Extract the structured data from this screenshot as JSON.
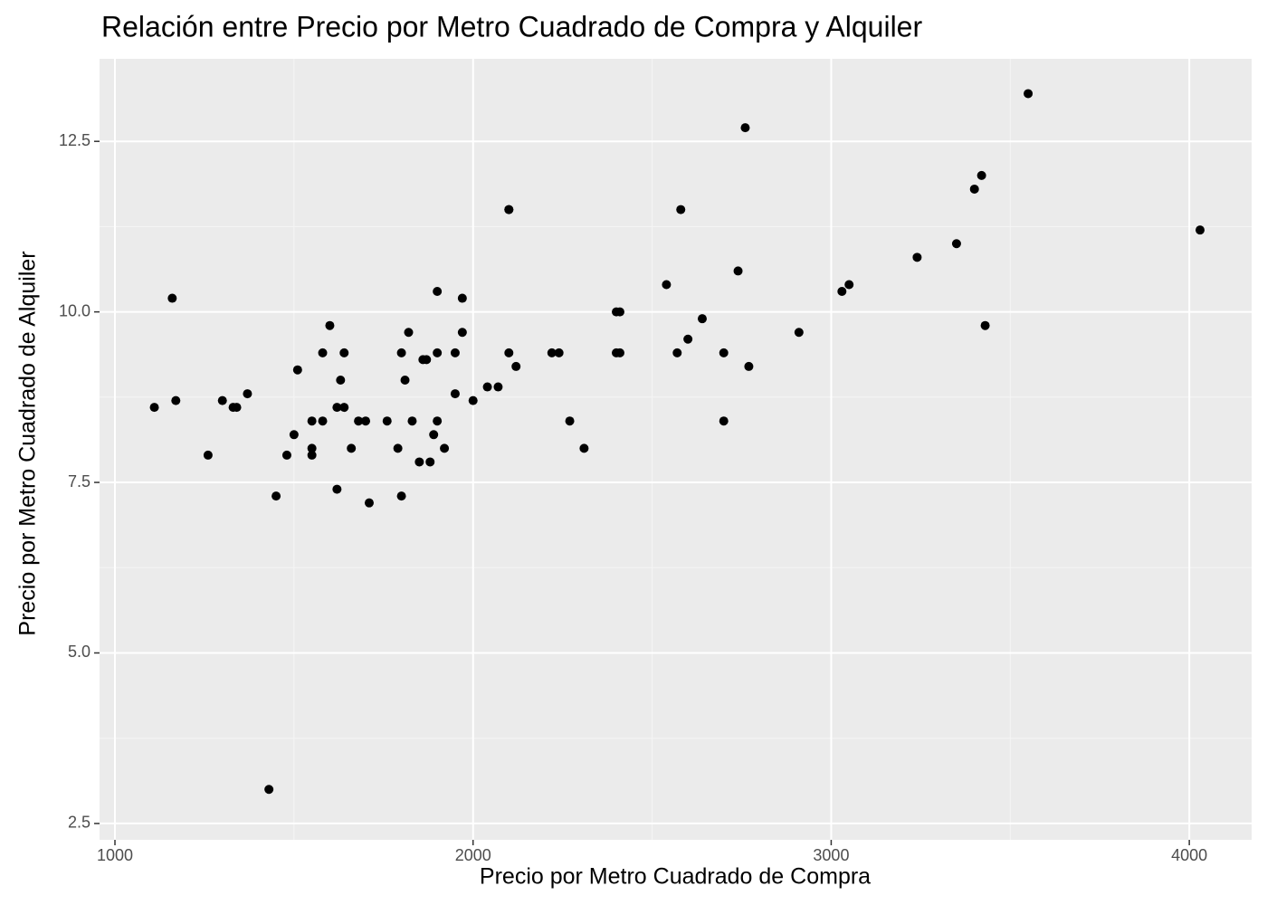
{
  "chart_data": {
    "type": "scatter",
    "title": "Relación entre Precio por Metro Cuadrado de Compra y Alquiler",
    "xlabel": "Precio por Metro Cuadrado de Compra",
    "ylabel": "Precio por Metro Cuadrado de Alquiler",
    "color": "#000000",
    "grid": true,
    "xlim": [
      957,
      4174
    ],
    "ylim": [
      2.26,
      13.71
    ],
    "xticks": [
      1000,
      2000,
      3000,
      4000
    ],
    "yticks": [
      2.5,
      {
        "value": 5,
        "label": "5.0"
      },
      7.5,
      {
        "value": 10,
        "label": "10.0"
      },
      12.5
    ],
    "x": [
      1110,
      1160,
      1170,
      1260,
      1300,
      1330,
      1340,
      1370,
      1450,
      1430,
      1480,
      1500,
      1510,
      1550,
      1550,
      1550,
      1580,
      1580,
      1600,
      1620,
      1620,
      1630,
      1640,
      1640,
      1660,
      1680,
      1700,
      1710,
      1760,
      1790,
      1800,
      1800,
      1810,
      1820,
      1830,
      1850,
      1860,
      1870,
      1880,
      1890,
      1900,
      1900,
      1900,
      1920,
      1950,
      1950,
      1970,
      1970,
      2000,
      2040,
      2070,
      2100,
      2100,
      2100,
      2120,
      2220,
      2240,
      2270,
      2310,
      2400,
      2410,
      2400,
      2410,
      2540,
      2570,
      2580,
      2600,
      2640,
      2700,
      2700,
      2740,
      2760,
      2770,
      2910,
      3030,
      3050,
      3240,
      3350,
      3400,
      3420,
      3430,
      3550,
      4030
    ],
    "values": [
      8.6,
      10.2,
      8.7,
      7.9,
      8.7,
      8.6,
      8.6,
      8.8,
      7.3,
      3.0,
      7.9,
      8.2,
      9.15,
      7.9,
      8.0,
      8.4,
      8.4,
      9.4,
      9.8,
      7.4,
      8.6,
      9.0,
      8.6,
      9.4,
      8.0,
      8.4,
      8.4,
      7.2,
      8.4,
      8.0,
      7.3,
      9.4,
      9.0,
      9.7,
      8.4,
      7.8,
      9.3,
      9.3,
      7.8,
      8.2,
      10.3,
      8.4,
      9.4,
      8.0,
      9.4,
      8.8,
      9.7,
      10.2,
      8.7,
      8.9,
      8.9,
      9.4,
      11.5,
      11.5,
      9.2,
      9.4,
      9.4,
      8.4,
      8.0,
      10.0,
      10.0,
      9.4,
      9.4,
      10.4,
      9.4,
      11.5,
      9.6,
      9.9,
      9.4,
      8.4,
      10.6,
      12.7,
      9.2,
      9.7,
      10.3,
      10.4,
      10.8,
      11.0,
      11.8,
      12.0,
      9.8,
      13.2,
      11.2
    ]
  }
}
